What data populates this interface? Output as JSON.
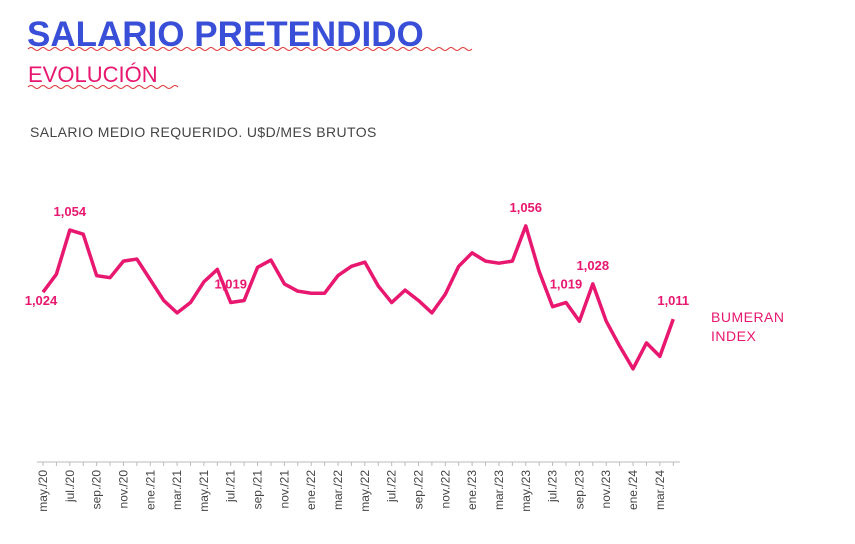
{
  "header": {
    "title": "SALARIO PRETENDIDO",
    "subtitle": "EVOLUCIÓN"
  },
  "chart_data": {
    "type": "line",
    "title": "SALARIO MEDIO REQUERIDO. U$D/MES BRUTOS",
    "categories": [
      "may./20",
      null,
      "jul./20",
      null,
      "sep./20",
      null,
      "nov./20",
      null,
      "ene./21",
      null,
      "mar./21",
      null,
      "may./21",
      null,
      "jul./21",
      null,
      "sep./21",
      null,
      "nov./21",
      null,
      "ene./22",
      null,
      "mar./22",
      null,
      "may./22",
      null,
      "jul./22",
      null,
      "sep./22",
      null,
      "nov./22",
      null,
      "ene./23",
      null,
      "mar./23",
      null,
      "may./23",
      null,
      "jul./23",
      null,
      "sep./23",
      null,
      "nov./23",
      null,
      "ene./24",
      null,
      "mar./24",
      null
    ],
    "series": [
      {
        "name": "BUMERAN INDEX",
        "color": "#e8176f",
        "values": [
          1024,
          1032.7,
          1054,
          1052,
          1032,
          1031,
          1039,
          1040,
          1030,
          1020,
          1014,
          1019,
          1029,
          1035,
          1019,
          1020,
          1036,
          1039.5,
          1028,
          1024.5,
          1023.5,
          1023.5,
          1032,
          1036.5,
          1038.5,
          1027,
          1019,
          1025,
          1020,
          1014,
          1023,
          1036.5,
          1043,
          1039,
          1038,
          1039,
          1056,
          1034,
          1017,
          1019,
          1010,
          1028,
          1010,
          998,
          987,
          999.5,
          993,
          1011
        ],
        "value_labels": [
          "1,024",
          null,
          "1,054",
          null,
          null,
          null,
          null,
          null,
          null,
          null,
          null,
          null,
          null,
          null,
          "1,019",
          null,
          null,
          null,
          null,
          null,
          null,
          null,
          null,
          null,
          null,
          null,
          null,
          null,
          null,
          null,
          null,
          null,
          null,
          null,
          null,
          null,
          "1,056",
          null,
          null,
          "1,019",
          null,
          "1,028",
          null,
          null,
          null,
          null,
          null,
          "1,011"
        ]
      }
    ],
    "ylim": [
      942,
      1083
    ]
  }
}
